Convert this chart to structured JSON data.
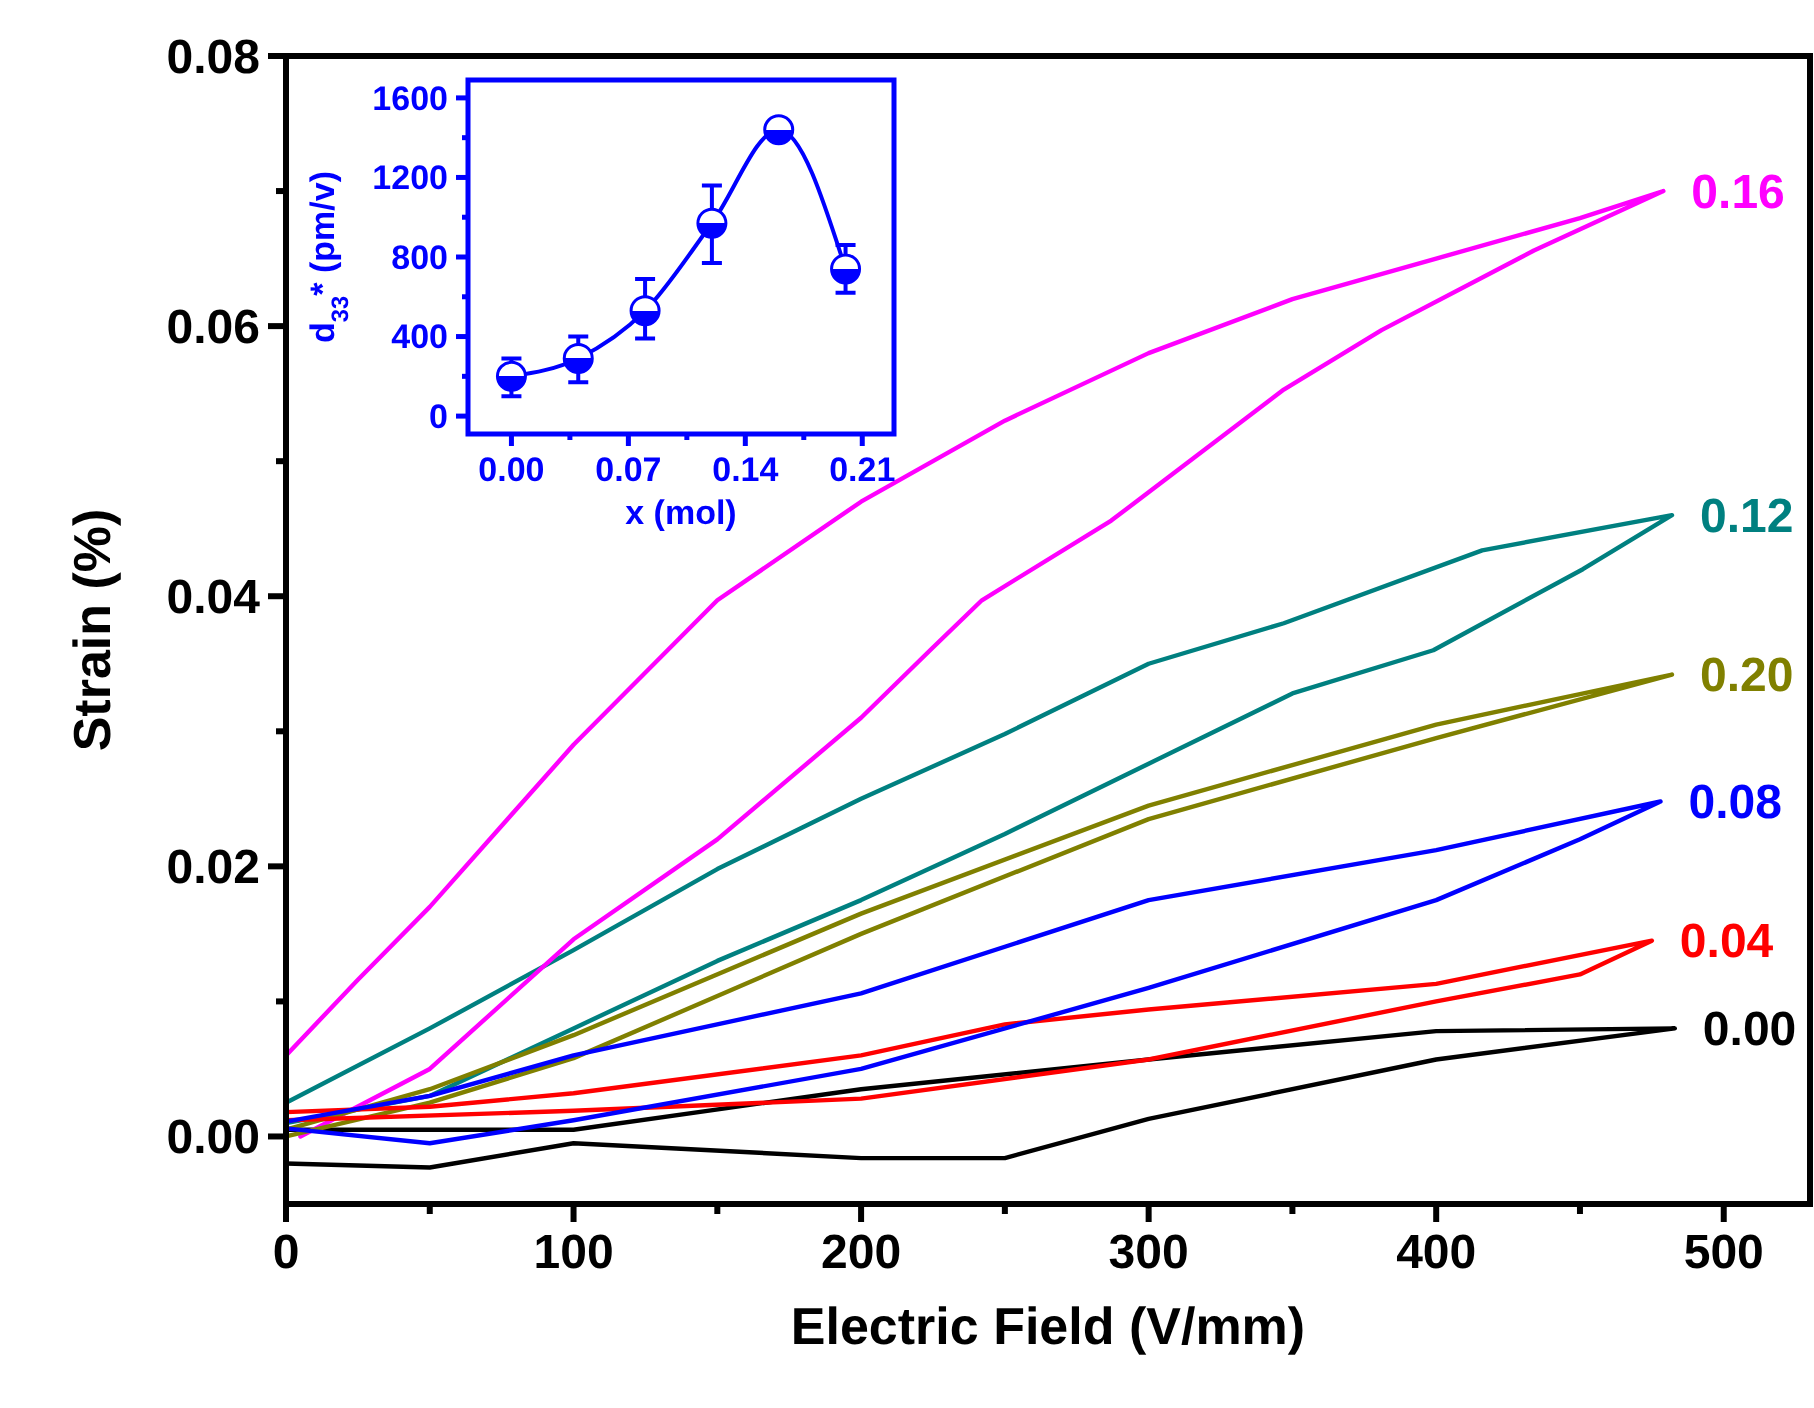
{
  "chart_data": [
    {
      "type": "line",
      "xlabel": "Electric Field (V/mm)",
      "ylabel": "Strain (%)",
      "xlim": [
        0,
        530
      ],
      "ylim": [
        -0.005,
        0.08
      ],
      "xticks": [
        {
          "value": 0,
          "label": "0"
        },
        {
          "value": 50,
          "label": null
        },
        {
          "value": 100,
          "label": "100"
        },
        {
          "value": 150,
          "label": null
        },
        {
          "value": 200,
          "label": "200"
        },
        {
          "value": 250,
          "label": null
        },
        {
          "value": 300,
          "label": "300"
        },
        {
          "value": 350,
          "label": null
        },
        {
          "value": 400,
          "label": "400"
        },
        {
          "value": 450,
          "label": null
        },
        {
          "value": 500,
          "label": "500"
        }
      ],
      "yticks": [
        {
          "value": 0,
          "label": "0.00"
        },
        {
          "value": 0.01,
          "label": null
        },
        {
          "value": 0.02,
          "label": "0.02"
        },
        {
          "value": 0.03,
          "label": null
        },
        {
          "value": 0.04,
          "label": "0.04"
        },
        {
          "value": 0.05,
          "label": null
        },
        {
          "value": 0.06,
          "label": "0.06"
        },
        {
          "value": 0.07,
          "label": null
        },
        {
          "value": 0.08,
          "label": "0.08"
        }
      ],
      "series": [
        {
          "name": "0.00",
          "color": "#000000",
          "x": [
            0,
            50,
            100,
            200,
            250,
            300,
            400,
            483,
            400,
            300,
            200,
            100,
            0
          ],
          "values": [
            -0.002,
            -0.0023,
            -0.0005,
            -0.0016,
            -0.0016,
            0.0013,
            0.0057,
            0.008,
            0.0078,
            0.0057,
            0.0035,
            0.0005,
            0.0005
          ]
        },
        {
          "name": "0.12",
          "color": "#008080",
          "x": [
            0,
            50,
            100,
            150,
            200,
            250,
            300,
            350,
            399,
            451,
            482,
            416,
            347,
            300,
            250,
            200,
            150,
            100,
            50,
            0
          ],
          "values": [
            0.001,
            0.003,
            0.008,
            0.013,
            0.0175,
            0.0224,
            0.0276,
            0.0328,
            0.036,
            0.042,
            0.046,
            0.0434,
            0.038,
            0.035,
            0.0298,
            0.025,
            0.0198,
            0.0138,
            0.008,
            0.0025
          ]
        },
        {
          "name": "0.16",
          "color": "#ff00ff",
          "x": [
            5,
            50,
            100,
            150,
            200,
            224,
            242,
            287,
            347,
            381,
            434,
            479,
            450,
            400,
            350,
            300,
            250,
            200,
            150,
            100,
            50,
            25,
            0
          ],
          "values": [
            0,
            0.005,
            0.0146,
            0.022,
            0.031,
            0.036,
            0.0397,
            0.0456,
            0.0553,
            0.0597,
            0.0656,
            0.07,
            0.068,
            0.065,
            0.062,
            0.058,
            0.053,
            0.047,
            0.0397,
            0.029,
            0.017,
            0.0116,
            0.006
          ]
        },
        {
          "name": "0.20",
          "color": "#808000",
          "x": [
            0,
            50,
            100,
            200,
            300,
            400,
            482,
            400,
            300,
            200,
            100,
            50,
            0
          ],
          "values": [
            0,
            0.0025,
            0.0058,
            0.015,
            0.0235,
            0.0295,
            0.0342,
            0.0305,
            0.0245,
            0.0165,
            0.0075,
            0.0035,
            0.0005
          ]
        },
        {
          "name": "0.04",
          "color": "#ff0000",
          "x": [
            0,
            100,
            200,
            300,
            400,
            450,
            475,
            400,
            300,
            250,
            200,
            100,
            50,
            0
          ],
          "values": [
            0.0012,
            0.0019,
            0.0028,
            0.0057,
            0.01,
            0.012,
            0.0145,
            0.0113,
            0.0094,
            0.0083,
            0.006,
            0.0032,
            0.0022,
            0.0018
          ]
        },
        {
          "name": "0.08",
          "color": "#0000ff",
          "x": [
            0,
            50,
            100,
            200,
            300,
            400,
            450,
            478,
            400,
            300,
            200,
            100,
            50,
            0
          ],
          "values": [
            0.0006,
            -0.0005,
            0.0012,
            0.005,
            0.011,
            0.0175,
            0.022,
            0.0248,
            0.0212,
            0.0175,
            0.0106,
            0.006,
            0.003,
            0.0011
          ]
        }
      ]
    },
    {
      "type": "line",
      "xlabel": "x (mol)",
      "ylabel": "d$_{33}$* (pm/v)",
      "xlim": [
        -0.026,
        0.229
      ],
      "ylim": [
        -90,
        1690
      ],
      "marker": "circle",
      "xticks": [
        {
          "value": 0,
          "label": "0.00"
        },
        {
          "value": 0.035,
          "label": null
        },
        {
          "value": 0.07,
          "label": "0.07"
        },
        {
          "value": 0.105,
          "label": null
        },
        {
          "value": 0.14,
          "label": "0.14"
        },
        {
          "value": 0.175,
          "label": null
        },
        {
          "value": 0.21,
          "label": "0.21"
        }
      ],
      "yticks": [
        0,
        {
          "value": 200,
          "label": null
        },
        400,
        {
          "value": 600,
          "label": null
        },
        800,
        {
          "value": 1000,
          "label": null
        },
        1200,
        {
          "value": 1400,
          "label": null
        },
        1600
      ],
      "x": [
        0,
        0.04,
        0.08,
        0.12,
        0.16,
        0.2
      ],
      "series": [
        {
          "color": "#0000ff",
          "values": [
            200,
            290,
            530,
            970,
            1440,
            740
          ],
          "errors": [
            [
              100,
              290
            ],
            [
              170,
              400
            ],
            [
              390,
              690
            ],
            [
              770,
              1160
            ],
            null,
            [
              620,
              860
            ]
          ]
        }
      ]
    }
  ]
}
